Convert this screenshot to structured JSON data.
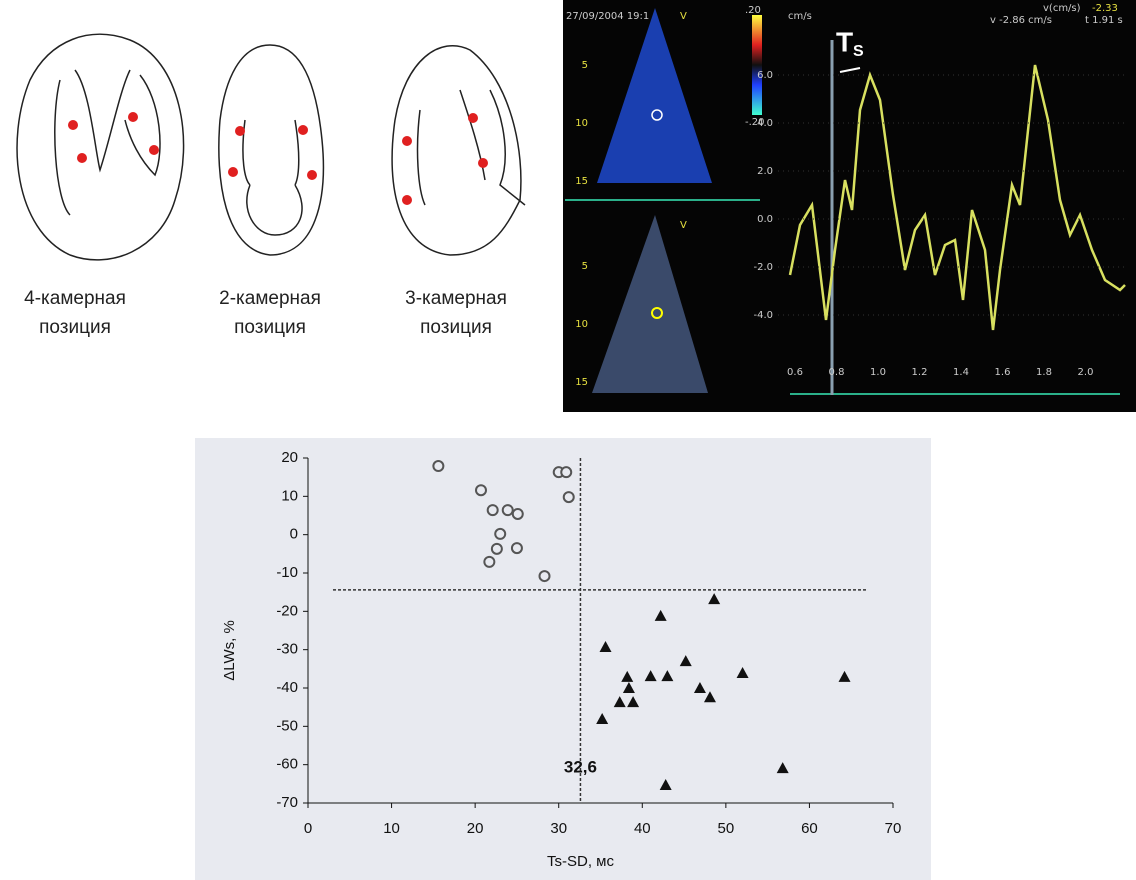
{
  "diagrams": [
    {
      "label": [
        "4-камерная",
        "позиция"
      ]
    },
    {
      "label": [
        "2-камерная",
        "позиция"
      ]
    },
    {
      "label": [
        "3-камерная",
        "позиция"
      ]
    }
  ],
  "echo": {
    "date": "27/09/2004 19:1",
    "mode_label": "V",
    "scale_max": ".20",
    "scale_min": "-.20",
    "unit": "cm/s",
    "readout_label": "v(cm/s)",
    "readout_value": "-2.33",
    "velocity": "v -2.86 cm/s",
    "time": "t 1.91 s",
    "marker": "T",
    "marker_sub": "S",
    "depth_ticks": [
      "5",
      "10",
      "15"
    ],
    "velocity_ticks": [
      "6.0",
      "4.0",
      "2.0",
      "0.0",
      "-2.0",
      "-4.0"
    ],
    "time_ticks": [
      "0.6",
      "0.8",
      "1.0",
      "1.2",
      "1.4",
      "1.6",
      "1.8",
      "2.0"
    ]
  },
  "chart_data": {
    "type": "scatter",
    "xlabel": "Ts-SD, мс",
    "ylabel": "ΔLWs, %",
    "xlim": [
      0,
      70
    ],
    "ylim": [
      -70,
      20
    ],
    "xticks": [
      0,
      10,
      20,
      30,
      40,
      50,
      60,
      70
    ],
    "yticks": [
      20,
      10,
      0,
      -10,
      -20,
      -30,
      -40,
      -50,
      -60,
      -70
    ],
    "vline": {
      "value": 32.6,
      "label": "32,6"
    },
    "hline": -14.4,
    "series": [
      {
        "marker": "circle",
        "color": "#555555",
        "x": [
          15.6,
          20.7,
          22.1,
          23.9,
          25.1,
          23.0,
          22.6,
          25.0,
          21.7,
          28.3,
          30.0,
          30.9,
          31.2
        ],
        "values": [
          17.9,
          11.6,
          6.4,
          6.4,
          5.4,
          0.2,
          -3.7,
          -3.5,
          -7.1,
          -10.8,
          16.3,
          16.3,
          9.8
        ]
      },
      {
        "marker": "triangle",
        "color": "#111111",
        "x": [
          48.6,
          42.2,
          35.6,
          41.0,
          43.0,
          38.2,
          45.2,
          52.0,
          64.2,
          38.4,
          46.9,
          48.1,
          37.3,
          38.9,
          35.2,
          56.8,
          42.8
        ],
        "values": [
          -16.8,
          -21.2,
          -29.3,
          -36.9,
          -36.9,
          -37.1,
          -33.0,
          -36.1,
          -37.1,
          -40.0,
          -40.0,
          -42.4,
          -43.7,
          -43.7,
          -48.1,
          -60.9,
          -65.3
        ]
      }
    ]
  }
}
